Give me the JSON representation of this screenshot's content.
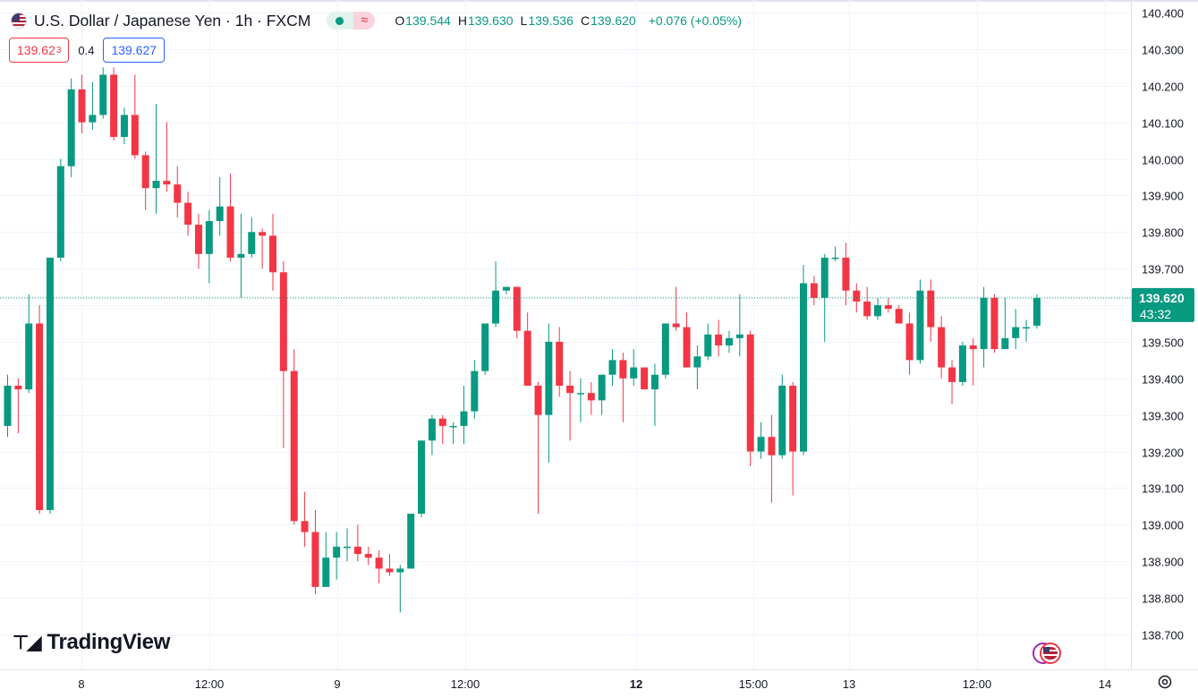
{
  "header": {
    "symbol": "U.S. Dollar / Japanese Yen · 1h · FXCM",
    "ohlc": {
      "o_label": "O",
      "o": "139.544",
      "h_label": "H",
      "h": "139.630",
      "l_label": "L",
      "l": "139.536",
      "c_label": "C",
      "c": "139.620",
      "change": "+0.076 (+0.05%)"
    }
  },
  "order": {
    "sell": "139.62",
    "sell_small": "3",
    "spread": "0.4",
    "buy": "139.627"
  },
  "price_scale": {
    "ticks": [
      "140.400",
      "140.300",
      "140.200",
      "140.100",
      "140.000",
      "139.900",
      "139.800",
      "139.700",
      "139.600",
      "139.500",
      "139.400",
      "139.300",
      "139.200",
      "139.100",
      "139.000",
      "138.900",
      "138.800",
      "138.700"
    ],
    "last_price": "139.620",
    "countdown": "43:32"
  },
  "time_scale": {
    "ticks": [
      "8",
      "12:00",
      "9",
      "12:00",
      "12",
      "15:00",
      "13",
      "12:00",
      "14"
    ],
    "bold": [
      "12"
    ]
  },
  "branding": {
    "name": "TradingView"
  },
  "colors": {
    "up": "#089981",
    "down": "#f23645",
    "grid": "#f0f3fa",
    "text": "#131722"
  },
  "chart_data": {
    "type": "candlestick",
    "title": "U.S. Dollar / Japanese Yen · 1h · FXCM",
    "ylim": [
      138.65,
      140.43
    ],
    "candles": [
      {
        "o": 139.27,
        "h": 139.41,
        "l": 139.24,
        "c": 139.38
      },
      {
        "o": 139.38,
        "h": 139.4,
        "l": 139.25,
        "c": 139.37
      },
      {
        "o": 139.37,
        "h": 139.63,
        "l": 139.36,
        "c": 139.55
      },
      {
        "o": 139.55,
        "h": 139.6,
        "l": 139.03,
        "c": 139.04
      },
      {
        "o": 139.04,
        "h": 139.73,
        "l": 139.03,
        "c": 139.73
      },
      {
        "o": 139.73,
        "h": 140.0,
        "l": 139.72,
        "c": 139.98
      },
      {
        "o": 139.98,
        "h": 140.22,
        "l": 139.95,
        "c": 140.19
      },
      {
        "o": 140.19,
        "h": 140.23,
        "l": 140.07,
        "c": 140.1
      },
      {
        "o": 140.1,
        "h": 140.21,
        "l": 140.08,
        "c": 140.12
      },
      {
        "o": 140.12,
        "h": 140.25,
        "l": 140.11,
        "c": 140.23
      },
      {
        "o": 140.23,
        "h": 140.25,
        "l": 140.05,
        "c": 140.06
      },
      {
        "o": 140.06,
        "h": 140.14,
        "l": 140.04,
        "c": 140.12
      },
      {
        "o": 140.12,
        "h": 140.23,
        "l": 140.0,
        "c": 140.01
      },
      {
        "o": 140.01,
        "h": 140.02,
        "l": 139.86,
        "c": 139.92
      },
      {
        "o": 139.92,
        "h": 140.15,
        "l": 139.85,
        "c": 139.94
      },
      {
        "o": 139.94,
        "h": 140.1,
        "l": 139.91,
        "c": 139.93
      },
      {
        "o": 139.93,
        "h": 139.98,
        "l": 139.84,
        "c": 139.88
      },
      {
        "o": 139.88,
        "h": 139.91,
        "l": 139.79,
        "c": 139.82
      },
      {
        "o": 139.82,
        "h": 139.85,
        "l": 139.7,
        "c": 139.74
      },
      {
        "o": 139.74,
        "h": 139.86,
        "l": 139.66,
        "c": 139.83
      },
      {
        "o": 139.83,
        "h": 139.95,
        "l": 139.79,
        "c": 139.87
      },
      {
        "o": 139.87,
        "h": 139.96,
        "l": 139.72,
        "c": 139.73
      },
      {
        "o": 139.73,
        "h": 139.85,
        "l": 139.62,
        "c": 139.74
      },
      {
        "o": 139.74,
        "h": 139.84,
        "l": 139.73,
        "c": 139.8
      },
      {
        "o": 139.8,
        "h": 139.81,
        "l": 139.7,
        "c": 139.79
      },
      {
        "o": 139.79,
        "h": 139.85,
        "l": 139.64,
        "c": 139.69
      },
      {
        "o": 139.69,
        "h": 139.72,
        "l": 139.21,
        "c": 139.42
      },
      {
        "o": 139.42,
        "h": 139.48,
        "l": 139.0,
        "c": 139.01
      },
      {
        "o": 139.01,
        "h": 139.09,
        "l": 138.94,
        "c": 138.98
      },
      {
        "o": 138.98,
        "h": 139.04,
        "l": 138.81,
        "c": 138.83
      },
      {
        "o": 138.83,
        "h": 138.98,
        "l": 138.83,
        "c": 138.91
      },
      {
        "o": 138.91,
        "h": 138.98,
        "l": 138.85,
        "c": 138.94
      },
      {
        "o": 138.94,
        "h": 138.99,
        "l": 138.9,
        "c": 138.94
      },
      {
        "o": 138.94,
        "h": 139.0,
        "l": 138.9,
        "c": 138.92
      },
      {
        "o": 138.92,
        "h": 138.94,
        "l": 138.89,
        "c": 138.91
      },
      {
        "o": 138.91,
        "h": 138.93,
        "l": 138.84,
        "c": 138.88
      },
      {
        "o": 138.88,
        "h": 138.92,
        "l": 138.86,
        "c": 138.87
      },
      {
        "o": 138.87,
        "h": 138.89,
        "l": 138.76,
        "c": 138.88
      },
      {
        "o": 138.88,
        "h": 139.03,
        "l": 138.88,
        "c": 139.03
      },
      {
        "o": 139.03,
        "h": 139.23,
        "l": 139.02,
        "c": 139.23
      },
      {
        "o": 139.23,
        "h": 139.3,
        "l": 139.19,
        "c": 139.29
      },
      {
        "o": 139.29,
        "h": 139.3,
        "l": 139.22,
        "c": 139.27
      },
      {
        "o": 139.27,
        "h": 139.28,
        "l": 139.22,
        "c": 139.27
      },
      {
        "o": 139.27,
        "h": 139.38,
        "l": 139.22,
        "c": 139.31
      },
      {
        "o": 139.31,
        "h": 139.45,
        "l": 139.29,
        "c": 139.42
      },
      {
        "o": 139.42,
        "h": 139.55,
        "l": 139.41,
        "c": 139.55
      },
      {
        "o": 139.55,
        "h": 139.72,
        "l": 139.54,
        "c": 139.64
      },
      {
        "o": 139.64,
        "h": 139.65,
        "l": 139.63,
        "c": 139.65
      },
      {
        "o": 139.65,
        "h": 139.65,
        "l": 139.51,
        "c": 139.53
      },
      {
        "o": 139.53,
        "h": 139.58,
        "l": 139.38,
        "c": 139.38
      },
      {
        "o": 139.38,
        "h": 139.39,
        "l": 139.03,
        "c": 139.3
      },
      {
        "o": 139.3,
        "h": 139.55,
        "l": 139.17,
        "c": 139.5
      },
      {
        "o": 139.5,
        "h": 139.54,
        "l": 139.35,
        "c": 139.38
      },
      {
        "o": 139.38,
        "h": 139.42,
        "l": 139.23,
        "c": 139.36
      },
      {
        "o": 139.36,
        "h": 139.4,
        "l": 139.28,
        "c": 139.36
      },
      {
        "o": 139.36,
        "h": 139.39,
        "l": 139.3,
        "c": 139.34
      },
      {
        "o": 139.34,
        "h": 139.41,
        "l": 139.3,
        "c": 139.41
      },
      {
        "o": 139.41,
        "h": 139.48,
        "l": 139.38,
        "c": 139.45
      },
      {
        "o": 139.45,
        "h": 139.47,
        "l": 139.28,
        "c": 139.4
      },
      {
        "o": 139.4,
        "h": 139.48,
        "l": 139.38,
        "c": 139.43
      },
      {
        "o": 139.43,
        "h": 139.43,
        "l": 139.37,
        "c": 139.37
      },
      {
        "o": 139.37,
        "h": 139.44,
        "l": 139.27,
        "c": 139.41
      },
      {
        "o": 139.41,
        "h": 139.55,
        "l": 139.4,
        "c": 139.55
      },
      {
        "o": 139.55,
        "h": 139.65,
        "l": 139.53,
        "c": 139.54
      },
      {
        "o": 139.54,
        "h": 139.58,
        "l": 139.43,
        "c": 139.43
      },
      {
        "o": 139.43,
        "h": 139.49,
        "l": 139.37,
        "c": 139.46
      },
      {
        "o": 139.46,
        "h": 139.55,
        "l": 139.45,
        "c": 139.52
      },
      {
        "o": 139.52,
        "h": 139.56,
        "l": 139.46,
        "c": 139.49
      },
      {
        "o": 139.49,
        "h": 139.53,
        "l": 139.47,
        "c": 139.51
      },
      {
        "o": 139.51,
        "h": 139.63,
        "l": 139.46,
        "c": 139.52
      },
      {
        "o": 139.52,
        "h": 139.53,
        "l": 139.16,
        "c": 139.2
      },
      {
        "o": 139.2,
        "h": 139.28,
        "l": 139.18,
        "c": 139.24
      },
      {
        "o": 139.24,
        "h": 139.3,
        "l": 139.06,
        "c": 139.19
      },
      {
        "o": 139.19,
        "h": 139.41,
        "l": 139.18,
        "c": 139.38
      },
      {
        "o": 139.38,
        "h": 139.39,
        "l": 139.08,
        "c": 139.2
      },
      {
        "o": 139.2,
        "h": 139.71,
        "l": 139.19,
        "c": 139.66
      },
      {
        "o": 139.66,
        "h": 139.68,
        "l": 139.6,
        "c": 139.62
      },
      {
        "o": 139.62,
        "h": 139.74,
        "l": 139.5,
        "c": 139.73
      },
      {
        "o": 139.73,
        "h": 139.76,
        "l": 139.72,
        "c": 139.73
      },
      {
        "o": 139.73,
        "h": 139.77,
        "l": 139.6,
        "c": 139.64
      },
      {
        "o": 139.64,
        "h": 139.66,
        "l": 139.58,
        "c": 139.61
      },
      {
        "o": 139.61,
        "h": 139.65,
        "l": 139.56,
        "c": 139.57
      },
      {
        "o": 139.57,
        "h": 139.62,
        "l": 139.56,
        "c": 139.6
      },
      {
        "o": 139.6,
        "h": 139.62,
        "l": 139.58,
        "c": 139.59
      },
      {
        "o": 139.59,
        "h": 139.6,
        "l": 139.55,
        "c": 139.55
      },
      {
        "o": 139.55,
        "h": 139.58,
        "l": 139.41,
        "c": 139.45
      },
      {
        "o": 139.45,
        "h": 139.67,
        "l": 139.44,
        "c": 139.64
      },
      {
        "o": 139.64,
        "h": 139.67,
        "l": 139.5,
        "c": 139.54
      },
      {
        "o": 139.54,
        "h": 139.57,
        "l": 139.4,
        "c": 139.43
      },
      {
        "o": 139.43,
        "h": 139.45,
        "l": 139.33,
        "c": 139.39
      },
      {
        "o": 139.39,
        "h": 139.5,
        "l": 139.38,
        "c": 139.49
      },
      {
        "o": 139.49,
        "h": 139.51,
        "l": 139.38,
        "c": 139.48
      },
      {
        "o": 139.48,
        "h": 139.65,
        "l": 139.43,
        "c": 139.62
      },
      {
        "o": 139.62,
        "h": 139.63,
        "l": 139.47,
        "c": 139.48
      },
      {
        "o": 139.48,
        "h": 139.62,
        "l": 139.48,
        "c": 139.51
      },
      {
        "o": 139.51,
        "h": 139.59,
        "l": 139.48,
        "c": 139.54
      },
      {
        "o": 139.54,
        "h": 139.56,
        "l": 139.5,
        "c": 139.54
      },
      {
        "o": 139.544,
        "h": 139.63,
        "l": 139.536,
        "c": 139.62
      }
    ]
  }
}
